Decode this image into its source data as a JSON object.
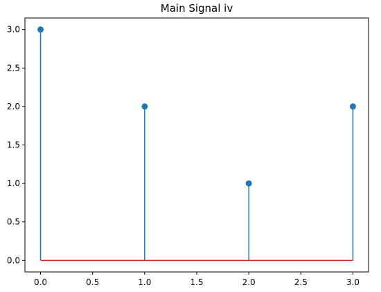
{
  "chart_data": {
    "type": "stem",
    "title": "Main Signal iv",
    "xlabel": "",
    "ylabel": "",
    "x": [
      0,
      1,
      2,
      3
    ],
    "values": [
      3,
      2,
      1,
      2
    ],
    "xlim": [
      -0.15,
      3.15
    ],
    "ylim": [
      -0.15,
      3.15
    ],
    "xticks": [
      0.0,
      0.5,
      1.0,
      1.5,
      2.0,
      2.5,
      3.0
    ],
    "xtick_labels": [
      "0.0",
      "0.5",
      "1.0",
      "1.5",
      "2.0",
      "2.5",
      "3.0"
    ],
    "yticks": [
      0.0,
      0.5,
      1.0,
      1.5,
      2.0,
      2.5,
      3.0
    ],
    "ytick_labels": [
      "0.0",
      "0.5",
      "1.0",
      "1.5",
      "2.0",
      "2.5",
      "3.0"
    ],
    "baseline": 0,
    "grid": false,
    "colors": {
      "stem": "#1f77b4",
      "marker": "#1f77b4",
      "baseline": "#d62728"
    }
  }
}
